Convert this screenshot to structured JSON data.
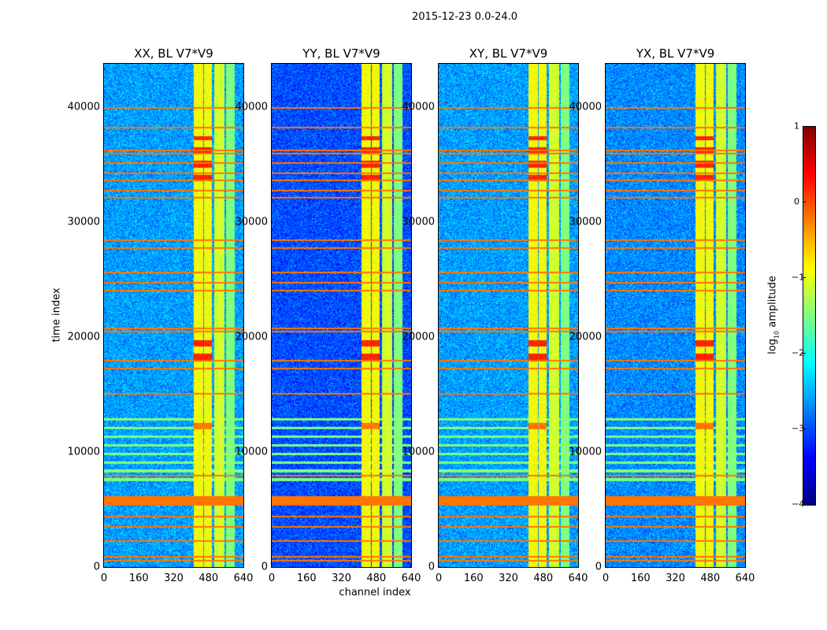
{
  "figure_title": "2015-12-23 0.0-24.0",
  "chart_data": [
    {
      "type": "heatmap",
      "title": "XX, BL V7*V9",
      "background_level": -2.6
    },
    {
      "type": "heatmap",
      "title": "YY, BL V7*V9",
      "background_level": -3.0
    },
    {
      "type": "heatmap",
      "title": "XY, BL V7*V9",
      "background_level": -2.6
    },
    {
      "type": "heatmap",
      "title": "YX, BL V7*V9",
      "background_level": -2.7
    }
  ],
  "shared": {
    "xlabel": "channel index",
    "ylabel": "time index",
    "xlim": [
      0,
      640
    ],
    "ylim": [
      0,
      43800
    ],
    "xticks": [
      "0",
      "160",
      "320",
      "480",
      "640"
    ],
    "xtick_values": [
      0,
      160,
      320,
      480,
      640
    ],
    "yticks": [
      "0",
      "10000",
      "20000",
      "30000",
      "40000"
    ],
    "ytick_values": [
      0,
      10000,
      20000,
      30000,
      40000
    ],
    "bright_channel_bands": [
      [
        409,
        452,
        -0.9
      ],
      [
        459,
        495,
        -0.9
      ],
      [
        506,
        553,
        -1.1
      ],
      [
        560,
        600,
        -1.5
      ]
    ],
    "hot_regions": [
      [
        409,
        495,
        33000,
        37500,
        0.2
      ],
      [
        409,
        495,
        17800,
        20000,
        0.2
      ],
      [
        409,
        495,
        11800,
        12600,
        -0.2
      ]
    ],
    "rfi_time_rows": [
      40000,
      38300,
      36300,
      36000,
      35200,
      34300,
      33700,
      32800,
      32200,
      28500,
      27800,
      25700,
      24800,
      24100,
      20800,
      20500,
      18000,
      17300,
      15100,
      8000,
      4400,
      3500,
      2300,
      900,
      600
    ],
    "rfi_band": [
      5400,
      6200
    ],
    "green_row_region": [
      7000,
      13500
    ]
  },
  "colorbar": {
    "label_prefix": "log",
    "label_sub": "10",
    "label_suffix": " amplitude",
    "range": [
      -4,
      1
    ],
    "ticks": [
      "1",
      "0",
      "−1",
      "−2",
      "−3",
      "−4"
    ],
    "tick_values": [
      1,
      0,
      -1,
      -2,
      -3,
      -4
    ],
    "colormap": "jet"
  }
}
